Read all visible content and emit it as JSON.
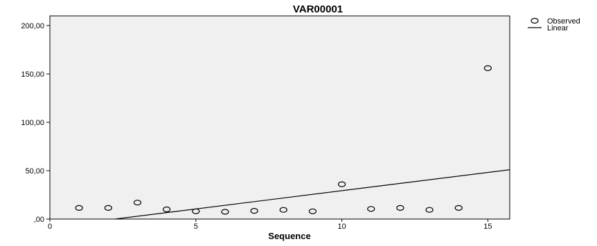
{
  "chart_data": {
    "type": "scatter",
    "title": "VAR00001",
    "xlabel": "Sequence",
    "ylabel": "",
    "xlim": [
      0,
      15.75
    ],
    "ylim": [
      0,
      210
    ],
    "xticks": [
      0,
      5,
      10,
      15
    ],
    "yticks": [
      0,
      50,
      100,
      150,
      200
    ],
    "ytick_labels": [
      ",00",
      "50,00",
      "100,00",
      "150,00",
      "200,00"
    ],
    "grid": false,
    "legend_position": "top-right",
    "plot_background": "#f0f0f0",
    "series": [
      {
        "name": "Observed",
        "kind": "points",
        "color": "#000000",
        "x": [
          1,
          2,
          3,
          4,
          5,
          6,
          7,
          8,
          9,
          10,
          11,
          12,
          13,
          14,
          15
        ],
        "y": [
          11.5,
          11.5,
          17,
          10,
          8,
          7.5,
          8.5,
          9.5,
          8,
          36,
          10.5,
          11.5,
          9.5,
          11.5,
          156
        ]
      },
      {
        "name": "Linear",
        "kind": "line",
        "color": "#000000",
        "x": [
          2.23,
          15.75
        ],
        "y": [
          0,
          51
        ]
      }
    ]
  }
}
